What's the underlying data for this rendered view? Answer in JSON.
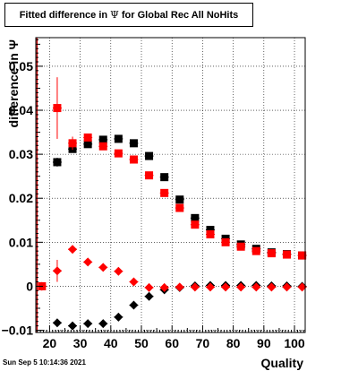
{
  "title": {
    "prefix": "Fitted difference in",
    "symbol": "Ψ",
    "suffix": "for Global Rec All NoHits"
  },
  "footer": {
    "timestamp": "Sun Sep  5 10:14:36 2021"
  },
  "chart_data": {
    "type": "scatter",
    "title": "Fitted difference in Ψ for Global Rec All NoHits",
    "xlabel": "Quality",
    "ylabel": "difference in Ψ",
    "xlim": [
      15.5,
      103.5
    ],
    "ylim": [
      -0.0105,
      0.0565
    ],
    "xticks": [
      20,
      30,
      40,
      50,
      60,
      70,
      80,
      90,
      100
    ],
    "yticks": [
      -0.01,
      0,
      0.01,
      0.02,
      0.03,
      0.04,
      0.05
    ],
    "ytick_labels": [
      "−0.01",
      "0",
      "0.01",
      "0.02",
      "0.03",
      "0.04",
      "0.05"
    ],
    "grid": true,
    "legend": "none",
    "series": [
      {
        "marker": "square",
        "color": "#000000",
        "x": [
          22.5,
          27.5,
          32.5,
          37.5,
          42.5,
          47.5,
          52.5,
          57.5,
          62.5,
          67.5,
          72.5,
          77.5,
          82.5,
          87.5,
          92.5,
          97.5,
          102.5
        ],
        "y": [
          0.0282,
          0.0312,
          0.0323,
          0.0333,
          0.0335,
          0.0325,
          0.0296,
          0.0248,
          0.0197,
          0.0155,
          0.0128,
          0.0108,
          0.0095,
          0.0085,
          0.0077,
          0.0073,
          0.007
        ],
        "yerr": [
          0.001,
          0.0007,
          0.0006,
          0.0004,
          0.0004,
          0.0003,
          0.0003,
          0.0003,
          0.0002,
          0.0002,
          0.0002,
          0.0002,
          0.0002,
          0.0002,
          0.0002,
          0.0002,
          0.0002
        ]
      },
      {
        "marker": "square",
        "color": "#ff0000",
        "x": [
          17.5,
          22.5,
          27.5,
          32.5,
          37.5,
          42.5,
          47.5,
          52.5,
          57.5,
          62.5,
          67.5,
          72.5,
          77.5,
          82.5,
          87.5,
          92.5,
          97.5,
          102.5
        ],
        "y": [
          0.0,
          0.0405,
          0.0325,
          0.0338,
          0.0318,
          0.0302,
          0.0288,
          0.0252,
          0.0212,
          0.0178,
          0.014,
          0.0118,
          0.01,
          0.009,
          0.008,
          0.0075,
          0.0072,
          0.007
        ],
        "yerr": [
          0.0,
          0.007,
          0.0015,
          0.0008,
          0.0005,
          0.0004,
          0.0003,
          0.0003,
          0.0003,
          0.0003,
          0.0002,
          0.0002,
          0.0002,
          0.0002,
          0.0002,
          0.0002,
          0.0002,
          0.0002
        ]
      },
      {
        "marker": "diamond",
        "color": "#000000",
        "x": [
          22.5,
          27.5,
          32.5,
          37.5,
          42.5,
          47.5,
          52.5,
          57.5,
          62.5,
          67.5,
          72.5,
          77.5,
          82.5,
          87.5,
          92.5,
          97.5,
          102.5
        ],
        "y": [
          -0.0083,
          -0.009,
          -0.0085,
          -0.0085,
          -0.007,
          -0.0043,
          -0.0023,
          -0.0008,
          -0.0003,
          0.0001,
          0.0002,
          0.0002,
          0.0002,
          0.0002,
          0.0001,
          0.0001,
          0.0
        ],
        "yerr": [
          0.0006,
          0.0004,
          0.0003,
          0.0003,
          0.0002,
          0.0002,
          0.0002,
          0.0001,
          0.0001,
          0.0001,
          0.0001,
          0.0001,
          0.0001,
          0.0001,
          0.0001,
          0.0001,
          0.0001
        ]
      },
      {
        "marker": "diamond",
        "color": "#ff0000",
        "x": [
          17.5,
          22.5,
          27.5,
          32.5,
          37.5,
          42.5,
          47.5,
          52.5,
          57.5,
          62.5,
          67.5,
          72.5,
          77.5,
          82.5,
          87.5,
          92.5,
          97.5,
          102.5
        ],
        "y": [
          0.0,
          0.0035,
          0.0084,
          0.0055,
          0.0043,
          0.0034,
          0.001,
          -0.0003,
          -0.0003,
          -0.0002,
          -0.0002,
          -0.0002,
          -0.0002,
          -0.0002,
          -0.0002,
          -0.0002,
          -0.0002,
          -0.0002
        ],
        "yerr": [
          0.0,
          0.0025,
          0.0008,
          0.0004,
          0.0003,
          0.0002,
          0.0002,
          0.0001,
          0.0001,
          0.0001,
          0.0001,
          0.0001,
          0.0001,
          0.0001,
          0.0001,
          0.0001,
          0.0001,
          0.0001
        ]
      }
    ],
    "vertical_line": {
      "x": 15.9,
      "y_range": [
        -0.0105,
        0.0565
      ],
      "color": "#c00000"
    }
  }
}
